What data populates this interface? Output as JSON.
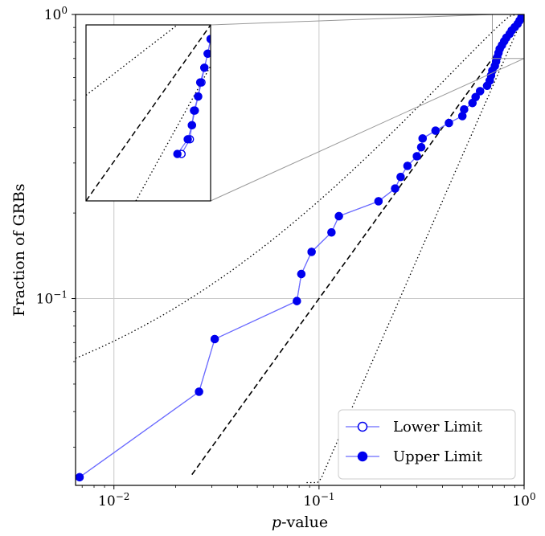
{
  "chart_data": {
    "type": "scatter",
    "xlabel_prefix": "p",
    "xlabel_suffix": "-value",
    "ylabel": "Fraction of GRBs",
    "x_scale": "log",
    "y_scale": "log",
    "xlim": [
      0.0065,
      1.0
    ],
    "ylim": [
      0.022,
      1.0
    ],
    "grid": true,
    "x_ticks": [
      {
        "value": 0.01,
        "base": "10",
        "exp": "−2"
      },
      {
        "value": 0.1,
        "base": "10",
        "exp": "−1"
      },
      {
        "value": 1.0,
        "base": "10",
        "exp": "0"
      }
    ],
    "y_ticks": [
      {
        "value": 0.1,
        "base": "10",
        "exp": "−1"
      },
      {
        "value": 1.0,
        "base": "10",
        "exp": "0"
      }
    ],
    "legend": {
      "position": "lower-right",
      "entries": [
        {
          "label": "Lower Limit",
          "marker": "open-circle"
        },
        {
          "label": "Upper Limit",
          "marker": "filled-circle"
        }
      ]
    },
    "series": [
      {
        "name": "Lower Limit",
        "marker": "open-circle",
        "x": [
          0.0068,
          0.026,
          0.031,
          0.078,
          0.082,
          0.092,
          0.115,
          0.125,
          0.195,
          0.235,
          0.25,
          0.27,
          0.3,
          0.315,
          0.32,
          0.37,
          0.43,
          0.5,
          0.51,
          0.56,
          0.58,
          0.61,
          0.66,
          0.68,
          0.69,
          0.7,
          0.72,
          0.73,
          0.74,
          0.75,
          0.76,
          0.78,
          0.8,
          0.82,
          0.85,
          0.87,
          0.9,
          0.93,
          0.95,
          0.97,
          0.985
        ],
        "y": [
          0.0235,
          0.047,
          0.072,
          0.098,
          0.122,
          0.146,
          0.171,
          0.195,
          0.22,
          0.244,
          0.268,
          0.293,
          0.317,
          0.341,
          0.366,
          0.39,
          0.415,
          0.439,
          0.463,
          0.488,
          0.512,
          0.537,
          0.561,
          0.585,
          0.61,
          0.634,
          0.659,
          0.683,
          0.707,
          0.732,
          0.756,
          0.78,
          0.805,
          0.829,
          0.854,
          0.878,
          0.902,
          0.927,
          0.951,
          0.976,
          1.0
        ]
      },
      {
        "name": "Upper Limit",
        "marker": "filled-circle",
        "x": [
          0.0068,
          0.026,
          0.031,
          0.078,
          0.082,
          0.092,
          0.115,
          0.125,
          0.195,
          0.235,
          0.25,
          0.27,
          0.3,
          0.315,
          0.32,
          0.37,
          0.43,
          0.5,
          0.51,
          0.56,
          0.58,
          0.61,
          0.66,
          0.68,
          0.69,
          0.7,
          0.72,
          0.73,
          0.74,
          0.75,
          0.76,
          0.78,
          0.8,
          0.82,
          0.85,
          0.87,
          0.9,
          0.93,
          0.95,
          0.97,
          0.985
        ],
        "y": [
          0.0235,
          0.047,
          0.072,
          0.098,
          0.122,
          0.146,
          0.171,
          0.195,
          0.22,
          0.244,
          0.268,
          0.293,
          0.317,
          0.341,
          0.366,
          0.39,
          0.415,
          0.439,
          0.463,
          0.488,
          0.512,
          0.537,
          0.561,
          0.585,
          0.61,
          0.634,
          0.659,
          0.683,
          0.707,
          0.732,
          0.756,
          0.78,
          0.805,
          0.829,
          0.854,
          0.878,
          0.902,
          0.927,
          0.951,
          0.976,
          1.0
        ]
      }
    ],
    "inset": {
      "xlim": [
        0.7,
        1.0
      ],
      "ylim": [
        0.7,
        1.0
      ],
      "lower_limit_points": {
        "x": [
          0.93,
          0.95,
          0.955,
          0.962,
          0.97,
          0.978,
          0.985,
          0.993,
          1.0
        ],
        "y": [
          0.78,
          0.805,
          0.829,
          0.854,
          0.878,
          0.902,
          0.927,
          0.951,
          0.976
        ]
      },
      "upper_limit_points": {
        "x": [
          0.92,
          0.945,
          0.955,
          0.96,
          0.97,
          0.975,
          0.985,
          0.993,
          1.0
        ],
        "y": [
          0.78,
          0.805,
          0.829,
          0.854,
          0.878,
          0.902,
          0.927,
          0.951,
          0.976
        ]
      }
    },
    "colors": {
      "data": "#0000ee",
      "line": "#6b6bff",
      "reference": "#000000",
      "grid": "#c8c8c8"
    }
  }
}
